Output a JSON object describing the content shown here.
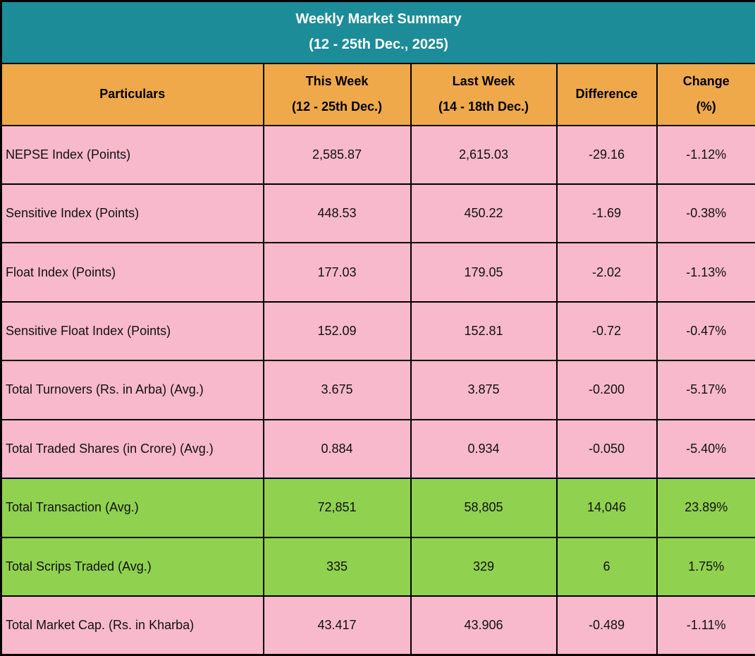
{
  "title": {
    "line1": "Weekly Market Summary",
    "line2": "(12 - 25th Dec., 2025)"
  },
  "table": {
    "columns": [
      {
        "label": "Particulars",
        "sub": ""
      },
      {
        "label": "This Week",
        "sub": "(12 - 25th Dec.)"
      },
      {
        "label": "Last Week",
        "sub": "(14 - 18th Dec.)"
      },
      {
        "label": "Difference",
        "sub": ""
      },
      {
        "label": "Change",
        "sub": "(%)"
      }
    ],
    "rows": [
      {
        "particular": "NEPSE Index (Points)",
        "this_week": "2,585.87",
        "last_week": "2,615.03",
        "difference": "-29.16",
        "change": "-1.12%",
        "highlight": false
      },
      {
        "particular": "Sensitive Index (Points)",
        "this_week": "448.53",
        "last_week": "450.22",
        "difference": "-1.69",
        "change": "-0.38%",
        "highlight": false
      },
      {
        "particular": "Float Index (Points)",
        "this_week": "177.03",
        "last_week": "179.05",
        "difference": "-2.02",
        "change": "-1.13%",
        "highlight": false
      },
      {
        "particular": "Sensitive Float Index (Points)",
        "this_week": "152.09",
        "last_week": "152.81",
        "difference": "-0.72",
        "change": "-0.47%",
        "highlight": false
      },
      {
        "particular": "Total Turnovers (Rs. in Arba) (Avg.)",
        "this_week": "3.675",
        "last_week": "3.875",
        "difference": "-0.200",
        "change": "-5.17%",
        "highlight": false
      },
      {
        "particular": "Total Traded Shares (in Crore) (Avg.)",
        "this_week": "0.884",
        "last_week": "0.934",
        "difference": "-0.050",
        "change": "-5.40%",
        "highlight": false
      },
      {
        "particular": "Total Transaction (Avg.)",
        "this_week": "72,851",
        "last_week": "58,805",
        "difference": "14,046",
        "change": "23.89%",
        "highlight": true
      },
      {
        "particular": "Total Scrips Traded (Avg.)",
        "this_week": "335",
        "last_week": "329",
        "difference": "6",
        "change": "1.75%",
        "highlight": true
      },
      {
        "particular": "Total Market Cap. (Rs. in Kharba)",
        "this_week": "43.417",
        "last_week": "43.906",
        "difference": "-0.489",
        "change": "-1.11%",
        "highlight": false
      }
    ]
  },
  "colors": {
    "teal": "#1C8C99",
    "orange": "#EFA94A",
    "pink": "#F8B9CD",
    "green": "#90D150",
    "border": "#000000",
    "title_text": "#FFFFFF",
    "cell_text": "#111111"
  },
  "chart_data": {
    "type": "table",
    "title": "Weekly Market Summary (12 - 25th Dec., 2025)",
    "columns": [
      "Particulars",
      "This Week (12 - 25th Dec.)",
      "Last Week (14 - 18th Dec.)",
      "Difference",
      "Change (%)"
    ],
    "rows": [
      [
        "NEPSE Index (Points)",
        2585.87,
        2615.03,
        -29.16,
        -1.12
      ],
      [
        "Sensitive Index (Points)",
        448.53,
        450.22,
        -1.69,
        -0.38
      ],
      [
        "Float Index (Points)",
        177.03,
        179.05,
        -2.02,
        -1.13
      ],
      [
        "Sensitive Float Index (Points)",
        152.09,
        152.81,
        -0.72,
        -0.47
      ],
      [
        "Total Turnovers (Rs. in Arba) (Avg.)",
        3.675,
        3.875,
        -0.2,
        -5.17
      ],
      [
        "Total Traded Shares (in Crore) (Avg.)",
        0.884,
        0.934,
        -0.05,
        -5.4
      ],
      [
        "Total Transaction (Avg.)",
        72851,
        58805,
        14046,
        23.89
      ],
      [
        "Total Scrips Traded (Avg.)",
        335,
        329,
        6,
        1.75
      ],
      [
        "Total Market Cap. (Rs. in Kharba)",
        43.417,
        43.906,
        -0.489,
        -1.11
      ]
    ],
    "layout_hints": {
      "highlighted_rows": [
        "Total Transaction (Avg.)",
        "Total Scrips Traded (Avg.)"
      ],
      "highlight_color": "#90D150",
      "row_color": "#F8B9CD",
      "header_color": "#EFA94A",
      "title_band_color": "#1C8C99"
    }
  }
}
